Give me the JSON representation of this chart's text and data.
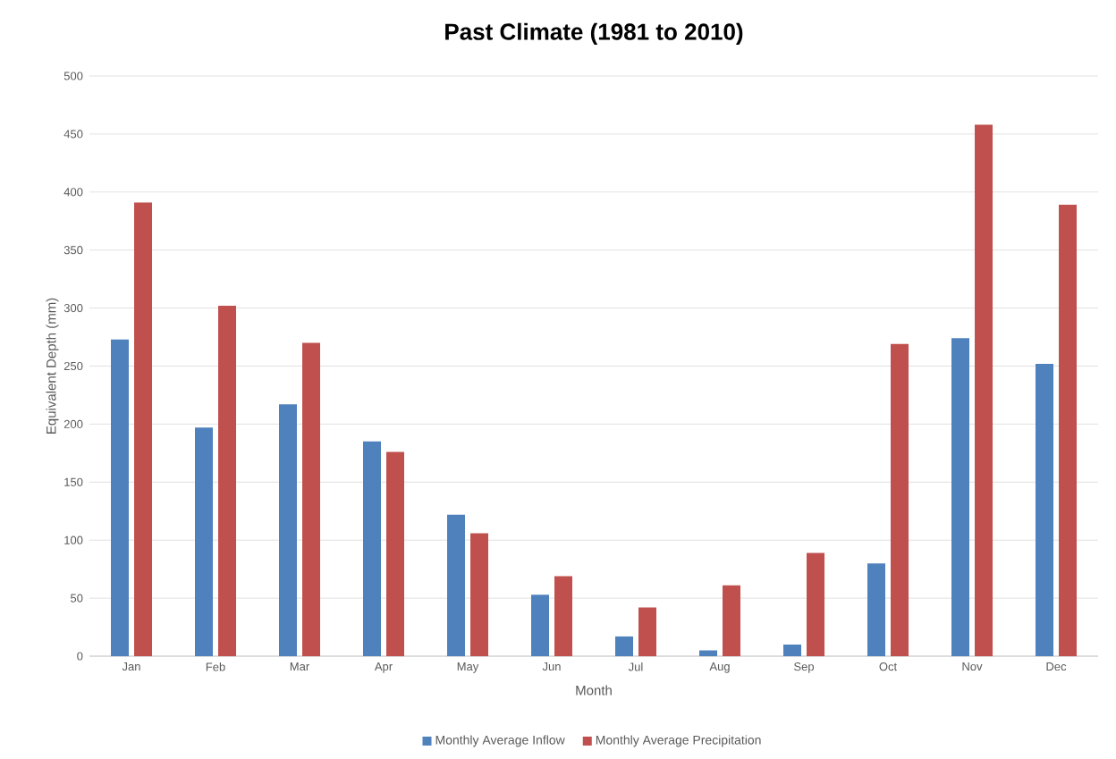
{
  "chart_data": {
    "type": "bar",
    "title": "Past Climate (1981 to 2010)",
    "xlabel": "Month",
    "ylabel": "Equivalent Depth (mm)",
    "categories": [
      "Jan",
      "Feb",
      "Mar",
      "Apr",
      "May",
      "Jun",
      "Jul",
      "Aug",
      "Sep",
      "Oct",
      "Nov",
      "Dec"
    ],
    "series": [
      {
        "name": "Monthly Average Inflow",
        "color": "#4f81bd",
        "values": [
          273,
          197,
          217,
          185,
          122,
          53,
          17,
          5,
          10,
          80,
          274,
          252
        ]
      },
      {
        "name": "Monthly Average Precipitation",
        "color": "#c0504d",
        "values": [
          391,
          302,
          270,
          176,
          106,
          69,
          42,
          61,
          89,
          269,
          458,
          389
        ]
      }
    ],
    "ylim": [
      0,
      500
    ],
    "yticks": [
      0,
      50,
      100,
      150,
      200,
      250,
      300,
      350,
      400,
      450,
      500
    ],
    "grid": "y",
    "legend": "bottom"
  }
}
